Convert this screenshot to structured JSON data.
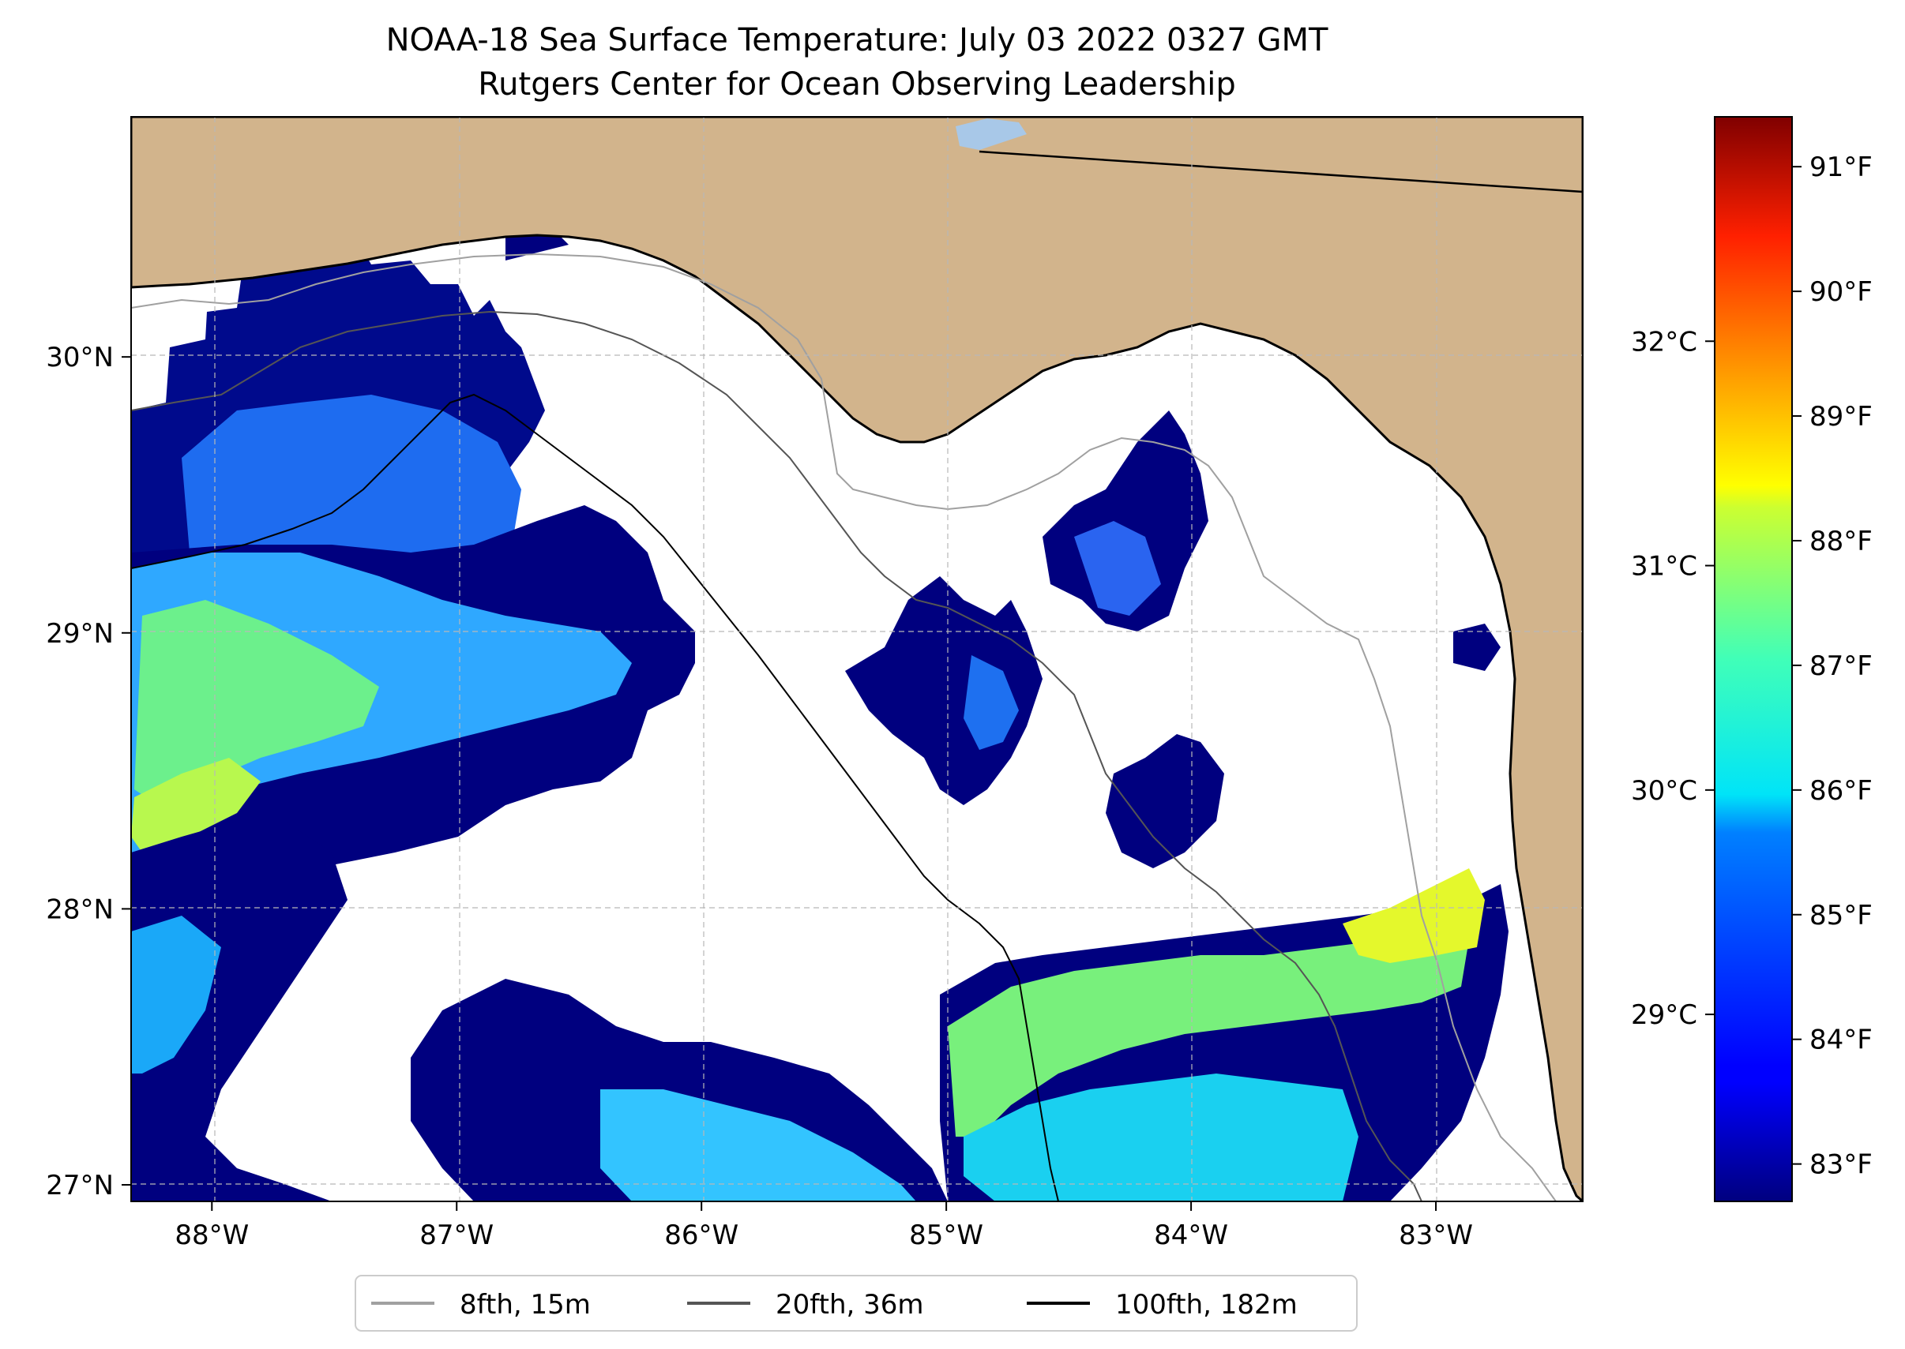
{
  "title": {
    "line1": "NOAA-18 Sea Surface Temperature: July 03 2022 0327 GMT",
    "line2": "Rutgers Center for Ocean Observing Leadership"
  },
  "map": {
    "type": "sea-surface-temperature-map",
    "lon_range": [
      -88.33,
      -82.4
    ],
    "lat_range": [
      26.94,
      30.87
    ],
    "lon_ticks": [
      "88°W",
      "87°W",
      "86°W",
      "85°W",
      "84°W",
      "83°W"
    ],
    "lon_tick_values": [
      -88,
      -87,
      -86,
      -85,
      -84,
      -83
    ],
    "lat_ticks": [
      "27°N",
      "28°N",
      "29°N",
      "30°N"
    ],
    "lat_tick_values": [
      27,
      28,
      29,
      30
    ],
    "land_color": "#d2b48c",
    "no_data_color": "#ffffff",
    "water_body_color": "#a8c8e8"
  },
  "colorbar": {
    "colormap": "jet",
    "range_f": [
      82.7,
      91.4
    ],
    "fahrenheit_ticks": [
      "83°F",
      "84°F",
      "85°F",
      "86°F",
      "87°F",
      "88°F",
      "89°F",
      "90°F",
      "91°F"
    ],
    "fahrenheit_values": [
      83,
      84,
      85,
      86,
      87,
      88,
      89,
      90,
      91
    ],
    "celsius_ticks": [
      "29°C",
      "30°C",
      "31°C",
      "32°C"
    ],
    "celsius_values": [
      29,
      30,
      31,
      32
    ]
  },
  "legend": {
    "items": [
      {
        "label": "8fth, 15m",
        "color": "#a0a0a0"
      },
      {
        "label": "20fth, 36m",
        "color": "#555555"
      },
      {
        "label": "100fth, 182m",
        "color": "#000000"
      }
    ]
  }
}
